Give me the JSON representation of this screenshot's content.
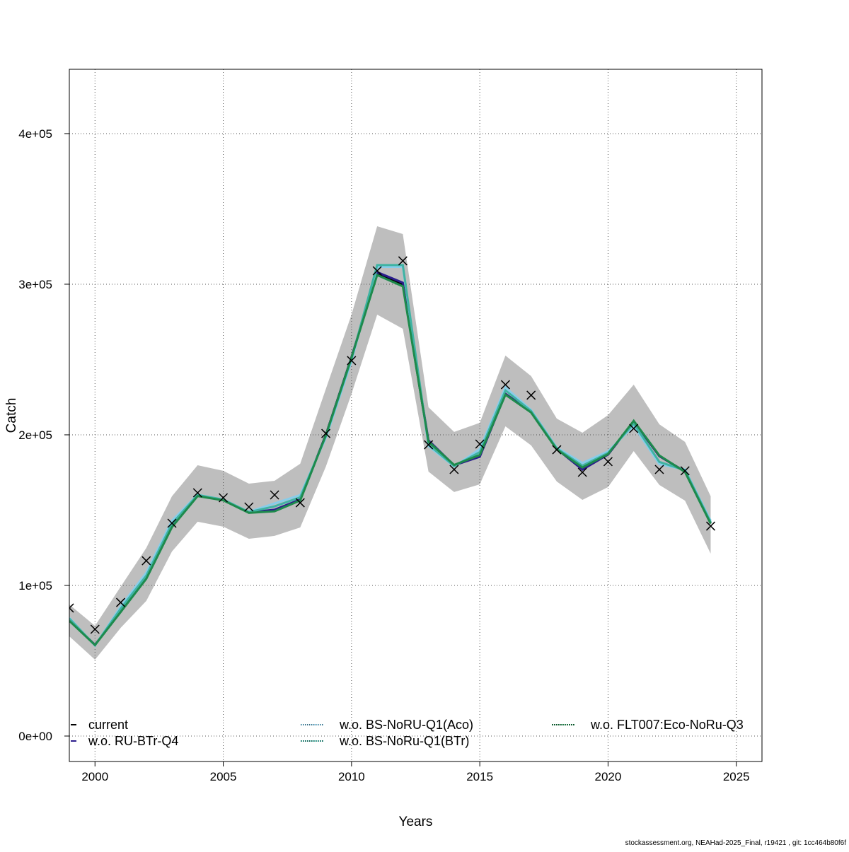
{
  "chart_data": {
    "type": "line",
    "xlabel": "Years",
    "ylabel": "Catch",
    "xlim": [
      1999,
      2026
    ],
    "ylim": [
      -16900,
      442700
    ],
    "x_ticks": [
      2000,
      2005,
      2010,
      2015,
      2020,
      2025
    ],
    "y_ticks": [
      0,
      100000,
      200000,
      300000,
      400000
    ],
    "y_tick_labels": [
      "0e+00",
      "1e+05",
      "2e+05",
      "3e+05",
      "4e+05"
    ],
    "grid": true,
    "legend_placement": "bottom",
    "x": [
      1999,
      2000,
      2001,
      2002,
      2003,
      2004,
      2005,
      2006,
      2007,
      2008,
      2009,
      2010,
      2011,
      2012,
      2013,
      2014,
      2015,
      2016,
      2017,
      2018,
      2019,
      2020,
      2021,
      2022,
      2023,
      2024
    ],
    "observed": [
      85000,
      70900,
      88700,
      116400,
      141300,
      161500,
      158200,
      152100,
      160100,
      154900,
      200900,
      249300,
      308900,
      315500,
      193400,
      177000,
      193900,
      233300,
      226300,
      190100,
      175100,
      182200,
      204200,
      177000,
      176100,
      139400
    ],
    "band": {
      "color": "#bebebe",
      "upper": [
        87300,
        73200,
        99100,
        124900,
        159200,
        179800,
        176100,
        167600,
        169500,
        180800,
        230500,
        279800,
        338500,
        333300,
        218300,
        201900,
        208000,
        252600,
        239000,
        210800,
        201400,
        213100,
        233300,
        207000,
        195300,
        159200
      ],
      "lower": [
        66200,
        50700,
        71800,
        89700,
        122500,
        142300,
        139000,
        131000,
        132900,
        138500,
        178900,
        227200,
        279800,
        270400,
        175600,
        162000,
        167100,
        205600,
        193000,
        169000,
        156800,
        165300,
        189200,
        166700,
        156300,
        121100
      ]
    },
    "series": [
      {
        "name": "current",
        "color": "#000000",
        "dash": "solid",
        "values": [
          77000,
          60600,
          82600,
          104700,
          139000,
          159600,
          156800,
          148400,
          149800,
          156800,
          200000,
          251600,
          307000,
          300000,
          195300,
          179800,
          185900,
          227200,
          215000,
          190600,
          177900,
          186900,
          208900,
          185900,
          175600,
          141300
        ]
      },
      {
        "name": "w.o. RU-BTr-Q4",
        "color": "#2b1d8c",
        "dash": "solid",
        "values": [
          77000,
          60600,
          82600,
          104700,
          139000,
          159600,
          156800,
          148400,
          150300,
          157000,
          200000,
          251600,
          308000,
          301000,
          196300,
          179800,
          185400,
          227200,
          215000,
          190600,
          176900,
          186900,
          208900,
          185900,
          175600,
          141300
        ]
      },
      {
        "name": "w.o. BS-NoRU-Q1(Aco)",
        "color": "#87cdea",
        "dash": "dotted",
        "values": [
          78500,
          60000,
          86000,
          108500,
          143000,
          160200,
          157000,
          148900,
          154500,
          160000,
          198000,
          249000,
          311500,
          311500,
          192500,
          179000,
          190500,
          231500,
          216500,
          191500,
          181300,
          189000,
          206000,
          180500,
          177000,
          143000
        ]
      },
      {
        "name": "w.o. BS-NoRu-Q1(BTr)",
        "color": "#3fb3a3",
        "dash": "dotted",
        "values": [
          78000,
          60300,
          84500,
          106500,
          141000,
          160000,
          157000,
          148700,
          152500,
          158500,
          199000,
          250500,
          312700,
          312700,
          193500,
          179300,
          188500,
          229500,
          215800,
          191000,
          179500,
          188000,
          207500,
          182000,
          176500,
          142000
        ]
      },
      {
        "name": "w.o. FLT007:Eco-NoRu-Q3",
        "color": "#1e8a4c",
        "dash": "dotted",
        "values": [
          76500,
          60400,
          82300,
          104400,
          138700,
          159300,
          156500,
          148200,
          149200,
          156400,
          199800,
          251400,
          306100,
          298600,
          195600,
          180000,
          186600,
          226600,
          214800,
          190300,
          178300,
          187200,
          209300,
          186300,
          175300,
          141000
        ]
      }
    ]
  },
  "footer": "stockassessment.org, NEAHad-2025_Final, r19421 , git: 1cc464b80f6f"
}
